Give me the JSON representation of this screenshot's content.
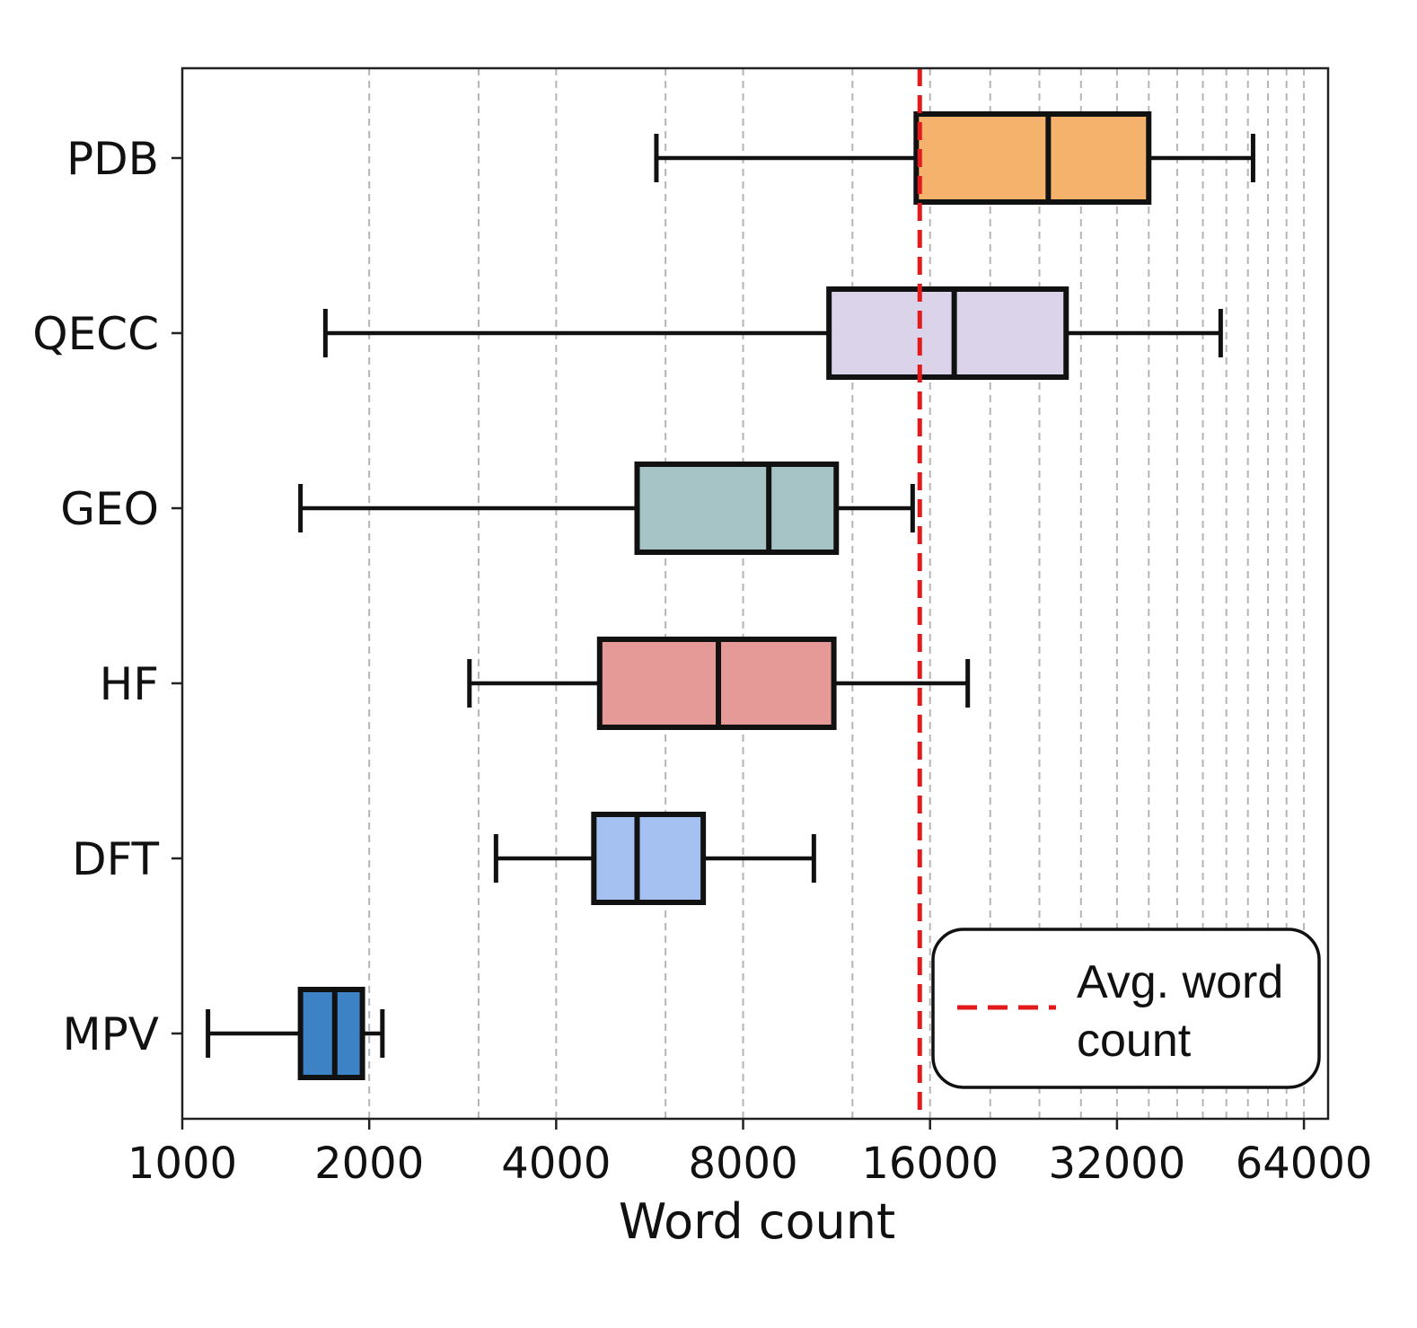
{
  "chart_data": {
    "type": "boxplot",
    "orientation": "horizontal",
    "xlabel": "Word count",
    "xscale": "log2",
    "xlim": [
      1000,
      70000
    ],
    "xticks": [
      1000,
      2000,
      4000,
      8000,
      16000,
      32000,
      64000
    ],
    "xtick_labels": [
      "1000",
      "2000",
      "4000",
      "8000",
      "16000",
      "32000",
      "64000"
    ],
    "grid": "vertical dashed (major and minor)",
    "categories": [
      "PDB",
      "QECC",
      "GEO",
      "HF",
      "DFT",
      "MPV"
    ],
    "boxes": [
      {
        "label": "PDB",
        "whisker_low": 5800,
        "q1": 15200,
        "median": 24800,
        "q3": 36000,
        "whisker_high": 53000,
        "color": "#f4b26c"
      },
      {
        "label": "QECC",
        "whisker_low": 1700,
        "q1": 11000,
        "median": 17500,
        "q3": 26500,
        "whisker_high": 47000,
        "color": "#dbd3e9"
      },
      {
        "label": "GEO",
        "whisker_low": 1550,
        "q1": 5400,
        "median": 8800,
        "q3": 11300,
        "whisker_high": 15000,
        "color": "#a6c3c5"
      },
      {
        "label": "HF",
        "whisker_low": 2900,
        "q1": 4700,
        "median": 7300,
        "q3": 11200,
        "whisker_high": 18400,
        "color": "#e69a98"
      },
      {
        "label": "DFT",
        "whisker_low": 3200,
        "q1": 4600,
        "median": 5400,
        "q3": 6900,
        "whisker_high": 10400,
        "color": "#a5c1f2"
      },
      {
        "label": "MPV",
        "whisker_low": 1100,
        "q1": 1550,
        "median": 1760,
        "q3": 1950,
        "whisker_high": 2100,
        "color": "#3e82c6"
      }
    ],
    "reference_line": {
      "value": 15400,
      "label": "Avg. word count",
      "color": "#e31a1c",
      "style": "dashed"
    },
    "legend": {
      "position": "bottom-right",
      "lines": [
        "Avg. word",
        "count"
      ]
    }
  }
}
